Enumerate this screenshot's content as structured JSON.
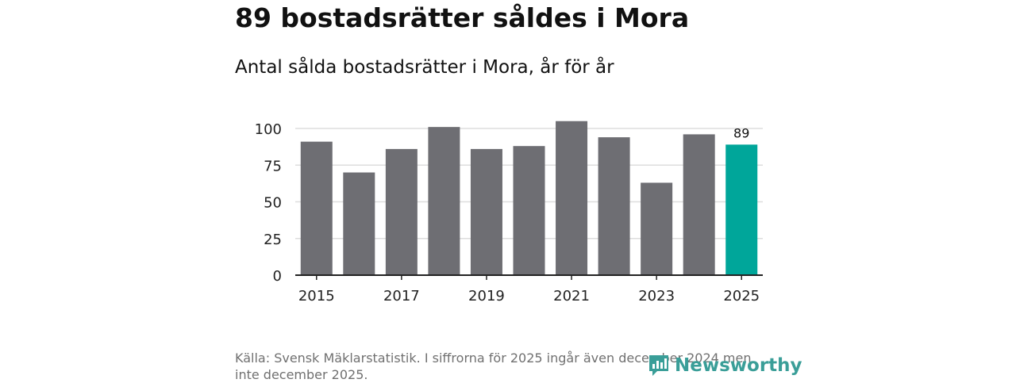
{
  "title": "89 bostadsrätter såldes i Mora",
  "subtitle": "Antal sålda bostadsrätter i Mora, år för år",
  "colors": {
    "bar": "#6e6e73",
    "highlight": "#00a69a",
    "grid": "#dddddd",
    "axis": "#222222",
    "brand": "#3a9e98"
  },
  "chart_data": {
    "type": "bar",
    "categories": [
      "2015",
      "2016",
      "2017",
      "2018",
      "2019",
      "2020",
      "2021",
      "2022",
      "2023",
      "2024",
      "2025"
    ],
    "values": [
      91,
      70,
      86,
      101,
      86,
      88,
      105,
      94,
      63,
      96,
      89
    ],
    "highlight_index": 10,
    "highlight_label": "89",
    "x_tick_labels": [
      "2015",
      "2017",
      "2019",
      "2021",
      "2023",
      "2025"
    ],
    "y_ticks": [
      0,
      25,
      50,
      75,
      100
    ],
    "ylim": [
      0,
      100
    ],
    "grid": true
  },
  "source": "Källa: Svensk Mäklarstatistik. I siffrorna för 2025 ingår även december 2024 men inte december 2025.",
  "logo": {
    "text": "Newsworthy",
    "icon": "newsworthy-logo-icon"
  }
}
